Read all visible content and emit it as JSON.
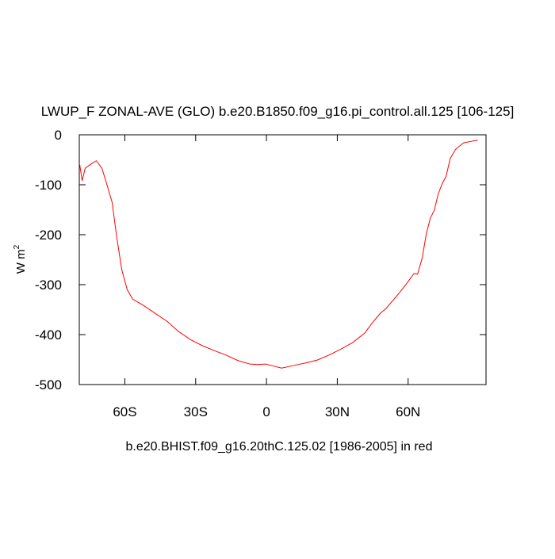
{
  "chart_data": {
    "type": "line",
    "title": "LWUP_F ZONAL-AVE (GLO) b.e20.B1850.f09_g16.pi_control.all.125 [106-125]",
    "subtitle": "b.e20.BHIST.f09_g16.20thC.125.02 [1986-2005] in red",
    "ylabel": "W m",
    "ylabel_superscript": "2",
    "x": [
      -79.1,
      -78.1,
      -76.8,
      -74.8,
      -72.1,
      -69.7,
      -67.4,
      -65.4,
      -63.4,
      -61.3,
      -59.0,
      -56.7,
      -52.3,
      -47.3,
      -42.2,
      -37.2,
      -32.2,
      -27.2,
      -22.1,
      -17.1,
      -12.1,
      -7.0,
      -3.7,
      -0.3,
      3.0,
      6.4,
      11.4,
      16.4,
      21.5,
      26.5,
      31.5,
      36.5,
      41.6,
      44.9,
      48.3,
      50.6,
      53.3,
      56.7,
      60.0,
      62.4,
      64.0,
      66.0,
      67.7,
      69.4,
      71.1,
      72.7,
      74.4,
      76.1,
      77.8,
      80.1,
      83.5,
      86.8,
      89.5
    ],
    "series": [
      {
        "color": "#ff0000",
        "values": [
          -60,
          -92,
          -67,
          -60,
          -52,
          -67,
          -103,
          -135,
          -206,
          -270,
          -310,
          -329,
          -341,
          -357,
          -373,
          -394,
          -410,
          -422,
          -432,
          -441,
          -452,
          -459,
          -460,
          -459,
          -463,
          -467,
          -462,
          -457,
          -451,
          -441,
          -429,
          -416,
          -397,
          -376,
          -357,
          -348,
          -333,
          -314,
          -294,
          -278,
          -279,
          -246,
          -198,
          -167,
          -151,
          -119,
          -98,
          -83,
          -48,
          -29,
          -16,
          -13,
          -11
        ]
      }
    ],
    "xlim": [
      -79.3,
      93
    ],
    "xticks": [
      {
        "value": -60,
        "label": "60S"
      },
      {
        "value": -30,
        "label": "30S"
      },
      0,
      {
        "value": 30,
        "label": "30N"
      },
      {
        "value": 60,
        "label": "60N"
      }
    ],
    "ylim": [
      -500,
      0
    ],
    "yticks": [
      0,
      -100,
      -200,
      -300,
      -400,
      -500
    ]
  }
}
